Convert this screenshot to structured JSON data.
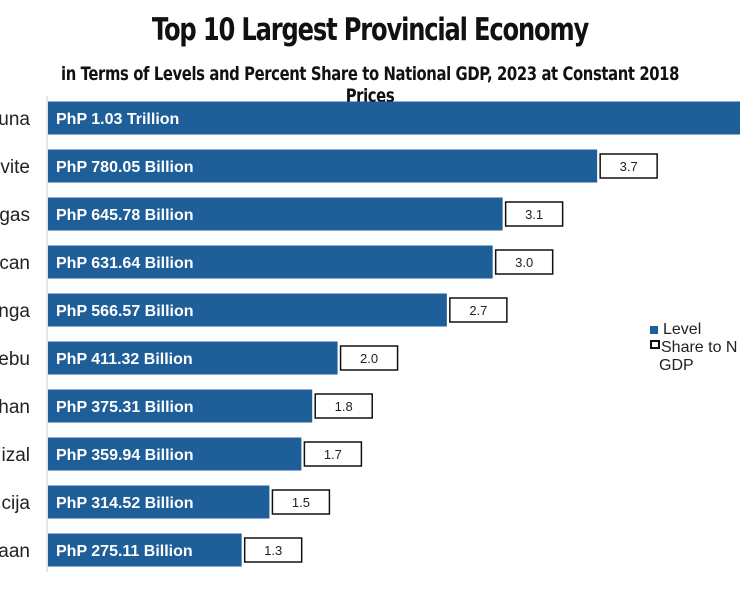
{
  "chart_data": {
    "type": "bar",
    "orientation": "horizontal",
    "title": "Top 10 Largest Provincial Economy",
    "subtitle": "in Terms of Levels and Percent Share to National GDP, 2023 at Constant 2018 Prices",
    "categories": [
      "una",
      "vite",
      "gas",
      "can",
      "nga",
      "ebu",
      "han",
      "izal",
      "cija",
      "aan"
    ],
    "series": [
      {
        "name": "Level",
        "unit": "PhP billion",
        "values": [
          1030,
          780.05,
          645.78,
          631.64,
          566.57,
          411.32,
          375.31,
          359.94,
          314.52,
          275.11
        ],
        "labels": [
          "PhP 1.03 Trillion",
          "PhP 780.05 Billion",
          "PhP 645.78 Billion",
          "PhP 631.64 Billion",
          "PhP 566.57 Billion",
          "PhP 411.32 Billion",
          "PhP 375.31 Billion",
          "PhP 359.94 Billion",
          "PhP 314.52 Billion",
          "PhP 275.11 Billion"
        ]
      },
      {
        "name": "Share to National GDP",
        "unit": "percent",
        "values": [
          null,
          3.7,
          3.1,
          3.0,
          2.7,
          2.0,
          1.8,
          1.7,
          1.5,
          1.3
        ],
        "labels": [
          "",
          "3.7",
          "3.1",
          "3.0",
          "2.7",
          "2.0",
          "1.8",
          "1.7",
          "1.5",
          "1.3"
        ]
      }
    ],
    "legend": {
      "position": "right",
      "items": [
        "Level",
        "Share to N",
        "GDP"
      ]
    },
    "grid": false,
    "colors": {
      "level": "#1f5f99",
      "share_box_border": "#111111"
    }
  }
}
